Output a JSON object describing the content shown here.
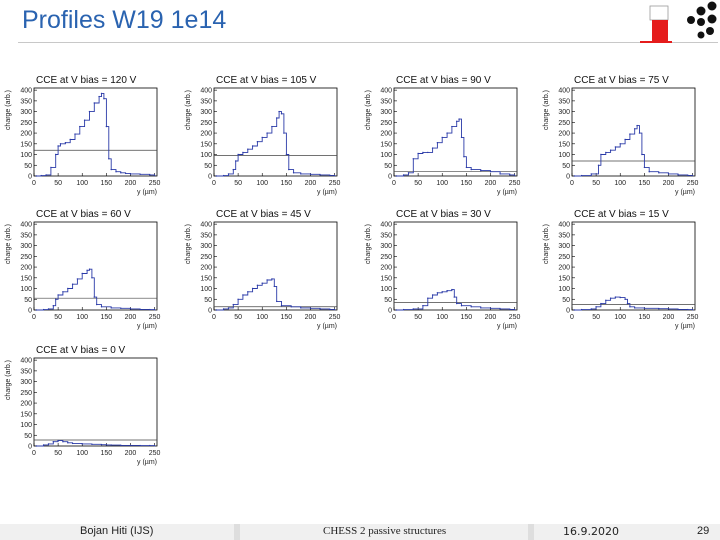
{
  "slide": {
    "title": "Profiles W19 1e14",
    "footer_author": "Bojan Hiti (IJS)",
    "footer_center": "CHESS 2 passive structures",
    "footer_date": "16.9.2020",
    "footer_page": "29"
  },
  "colors": {
    "title": "#2a63b0",
    "trace": "#2a3aa8",
    "reference_line": "#444444",
    "logo_red": "#e51c1c",
    "logo_dots": "#111111"
  },
  "icons": {
    "logo": "institute-logo-icon"
  },
  "chart_data": [
    {
      "type": "line",
      "title": "CCE at V bias =  120 V",
      "xlabel": "y (µm)",
      "ylabel": "charge (arb.)",
      "xlim": [
        0,
        255
      ],
      "ylim": [
        0,
        410
      ],
      "xticks": [
        0,
        50,
        100,
        150,
        200,
        250
      ],
      "yticks": [
        0,
        50,
        100,
        150,
        200,
        250,
        300,
        350,
        400
      ],
      "reference_level": 120,
      "x": [
        5,
        15,
        25,
        35,
        45,
        50,
        55,
        65,
        75,
        85,
        95,
        105,
        115,
        125,
        135,
        140,
        145,
        150,
        155,
        160,
        170,
        180,
        190,
        200,
        220,
        240,
        250
      ],
      "values": [
        0,
        2,
        5,
        40,
        100,
        140,
        150,
        155,
        170,
        195,
        230,
        260,
        300,
        340,
        370,
        385,
        360,
        230,
        80,
        30,
        20,
        15,
        12,
        10,
        8,
        5,
        3
      ]
    },
    {
      "type": "line",
      "title": "CCE at V bias =  105 V",
      "xlabel": "y (µm)",
      "ylabel": "charge (arb.)",
      "xlim": [
        0,
        255
      ],
      "ylim": [
        0,
        410
      ],
      "xticks": [
        0,
        50,
        100,
        150,
        200,
        250
      ],
      "yticks": [
        0,
        50,
        100,
        150,
        200,
        250,
        300,
        350,
        400
      ],
      "reference_level": 95,
      "x": [
        5,
        20,
        30,
        40,
        45,
        50,
        60,
        70,
        80,
        90,
        100,
        110,
        120,
        130,
        135,
        140,
        145,
        150,
        155,
        165,
        180,
        200,
        220,
        240,
        250
      ],
      "values": [
        0,
        2,
        10,
        30,
        70,
        100,
        110,
        125,
        140,
        160,
        180,
        200,
        230,
        270,
        300,
        290,
        200,
        100,
        30,
        15,
        10,
        8,
        5,
        3,
        2
      ]
    },
    {
      "type": "line",
      "title": "CCE at V bias =  90 V",
      "xlabel": "y (µm)",
      "ylabel": "charge (arb.)",
      "xlim": [
        0,
        255
      ],
      "ylim": [
        0,
        410
      ],
      "xticks": [
        0,
        50,
        100,
        150,
        200,
        250
      ],
      "yticks": [
        0,
        50,
        100,
        150,
        200,
        250,
        300,
        350,
        400
      ],
      "reference_level": 20,
      "x": [
        5,
        20,
        30,
        40,
        50,
        60,
        70,
        80,
        90,
        100,
        110,
        120,
        130,
        135,
        140,
        145,
        150,
        160,
        180,
        200,
        220,
        240,
        250
      ],
      "values": [
        0,
        5,
        15,
        80,
        105,
        110,
        110,
        130,
        155,
        180,
        200,
        230,
        255,
        265,
        180,
        90,
        40,
        30,
        25,
        20,
        10,
        5,
        3
      ]
    },
    {
      "type": "line",
      "title": "CCE at V bias =  75 V",
      "xlabel": "y (µm)",
      "ylabel": "charge (arb.)",
      "xlim": [
        0,
        255
      ],
      "ylim": [
        0,
        410
      ],
      "xticks": [
        0,
        50,
        100,
        150,
        200,
        250
      ],
      "yticks": [
        0,
        50,
        100,
        150,
        200,
        250,
        300,
        350,
        400
      ],
      "reference_level": 70,
      "x": [
        5,
        20,
        40,
        55,
        60,
        70,
        80,
        90,
        100,
        110,
        120,
        130,
        135,
        140,
        145,
        150,
        160,
        180,
        200,
        220,
        240,
        250
      ],
      "values": [
        0,
        2,
        10,
        50,
        100,
        110,
        120,
        135,
        150,
        170,
        195,
        220,
        235,
        200,
        100,
        40,
        20,
        15,
        10,
        5,
        3,
        2
      ]
    },
    {
      "type": "line",
      "title": "CCE at V bias =  60 V",
      "xlabel": "y (µm)",
      "ylabel": "charge (arb.)",
      "xlim": [
        0,
        255
      ],
      "ylim": [
        0,
        410
      ],
      "xticks": [
        0,
        50,
        100,
        150,
        200,
        250
      ],
      "yticks": [
        0,
        50,
        100,
        150,
        200,
        250,
        300,
        350,
        400
      ],
      "reference_level": 55,
      "x": [
        5,
        20,
        30,
        40,
        45,
        50,
        60,
        70,
        80,
        90,
        100,
        110,
        115,
        120,
        125,
        130,
        140,
        160,
        180,
        200,
        220,
        240,
        250
      ],
      "values": [
        0,
        2,
        5,
        20,
        50,
        70,
        85,
        100,
        120,
        145,
        170,
        185,
        190,
        150,
        60,
        25,
        15,
        10,
        8,
        5,
        3,
        2,
        1
      ]
    },
    {
      "type": "line",
      "title": "CCE at V bias =  45 V",
      "xlabel": "y (µm)",
      "ylabel": "charge (arb.)",
      "xlim": [
        0,
        255
      ],
      "ylim": [
        0,
        410
      ],
      "xticks": [
        0,
        50,
        100,
        150,
        200,
        250
      ],
      "yticks": [
        0,
        50,
        100,
        150,
        200,
        250,
        300,
        350,
        400
      ],
      "reference_level": 15,
      "x": [
        5,
        20,
        30,
        40,
        50,
        60,
        70,
        80,
        90,
        100,
        110,
        120,
        125,
        130,
        140,
        160,
        180,
        200,
        220,
        240,
        250
      ],
      "values": [
        0,
        5,
        10,
        25,
        50,
        70,
        85,
        100,
        115,
        125,
        140,
        145,
        110,
        40,
        20,
        15,
        10,
        8,
        5,
        3,
        2
      ]
    },
    {
      "type": "line",
      "title": "CCE at V bias =  30 V",
      "xlabel": "y (µm)",
      "ylabel": "charge (arb.)",
      "xlim": [
        0,
        255
      ],
      "ylim": [
        0,
        410
      ],
      "xticks": [
        0,
        50,
        100,
        150,
        200,
        250
      ],
      "yticks": [
        0,
        50,
        100,
        150,
        200,
        250,
        300,
        350,
        400
      ],
      "reference_level": 35,
      "x": [
        5,
        20,
        40,
        60,
        70,
        80,
        90,
        100,
        110,
        120,
        125,
        130,
        140,
        160,
        180,
        200,
        220,
        240,
        250
      ],
      "values": [
        0,
        2,
        5,
        20,
        55,
        70,
        80,
        85,
        90,
        95,
        60,
        30,
        20,
        15,
        10,
        8,
        5,
        3,
        2
      ]
    },
    {
      "type": "line",
      "title": "CCE at V bias =  15 V",
      "xlabel": "y (µm)",
      "ylabel": "charge (arb.)",
      "xlim": [
        0,
        255
      ],
      "ylim": [
        0,
        410
      ],
      "xticks": [
        0,
        50,
        100,
        150,
        200,
        250
      ],
      "yticks": [
        0,
        50,
        100,
        150,
        200,
        250,
        300,
        350,
        400
      ],
      "reference_level": 25,
      "x": [
        5,
        20,
        40,
        50,
        60,
        70,
        80,
        90,
        100,
        110,
        115,
        120,
        130,
        150,
        180,
        200,
        220,
        240,
        250
      ],
      "values": [
        0,
        2,
        5,
        15,
        30,
        45,
        55,
        60,
        58,
        50,
        30,
        15,
        10,
        8,
        6,
        5,
        3,
        2,
        1
      ]
    },
    {
      "type": "line",
      "title": "CCE at V bias =  0 V",
      "xlabel": "y (µm)",
      "ylabel": "charge (arb.)",
      "xlim": [
        0,
        255
      ],
      "ylim": [
        0,
        410
      ],
      "xticks": [
        0,
        50,
        100,
        150,
        200,
        250
      ],
      "yticks": [
        0,
        50,
        100,
        150,
        200,
        250,
        300,
        350,
        400
      ],
      "reference_level": 28,
      "x": [
        5,
        20,
        30,
        40,
        50,
        60,
        70,
        80,
        100,
        120,
        140,
        150,
        160,
        180,
        200,
        220,
        240,
        250
      ],
      "values": [
        0,
        5,
        10,
        20,
        25,
        20,
        15,
        12,
        10,
        8,
        6,
        5,
        4,
        3,
        3,
        2,
        2,
        1
      ]
    }
  ]
}
